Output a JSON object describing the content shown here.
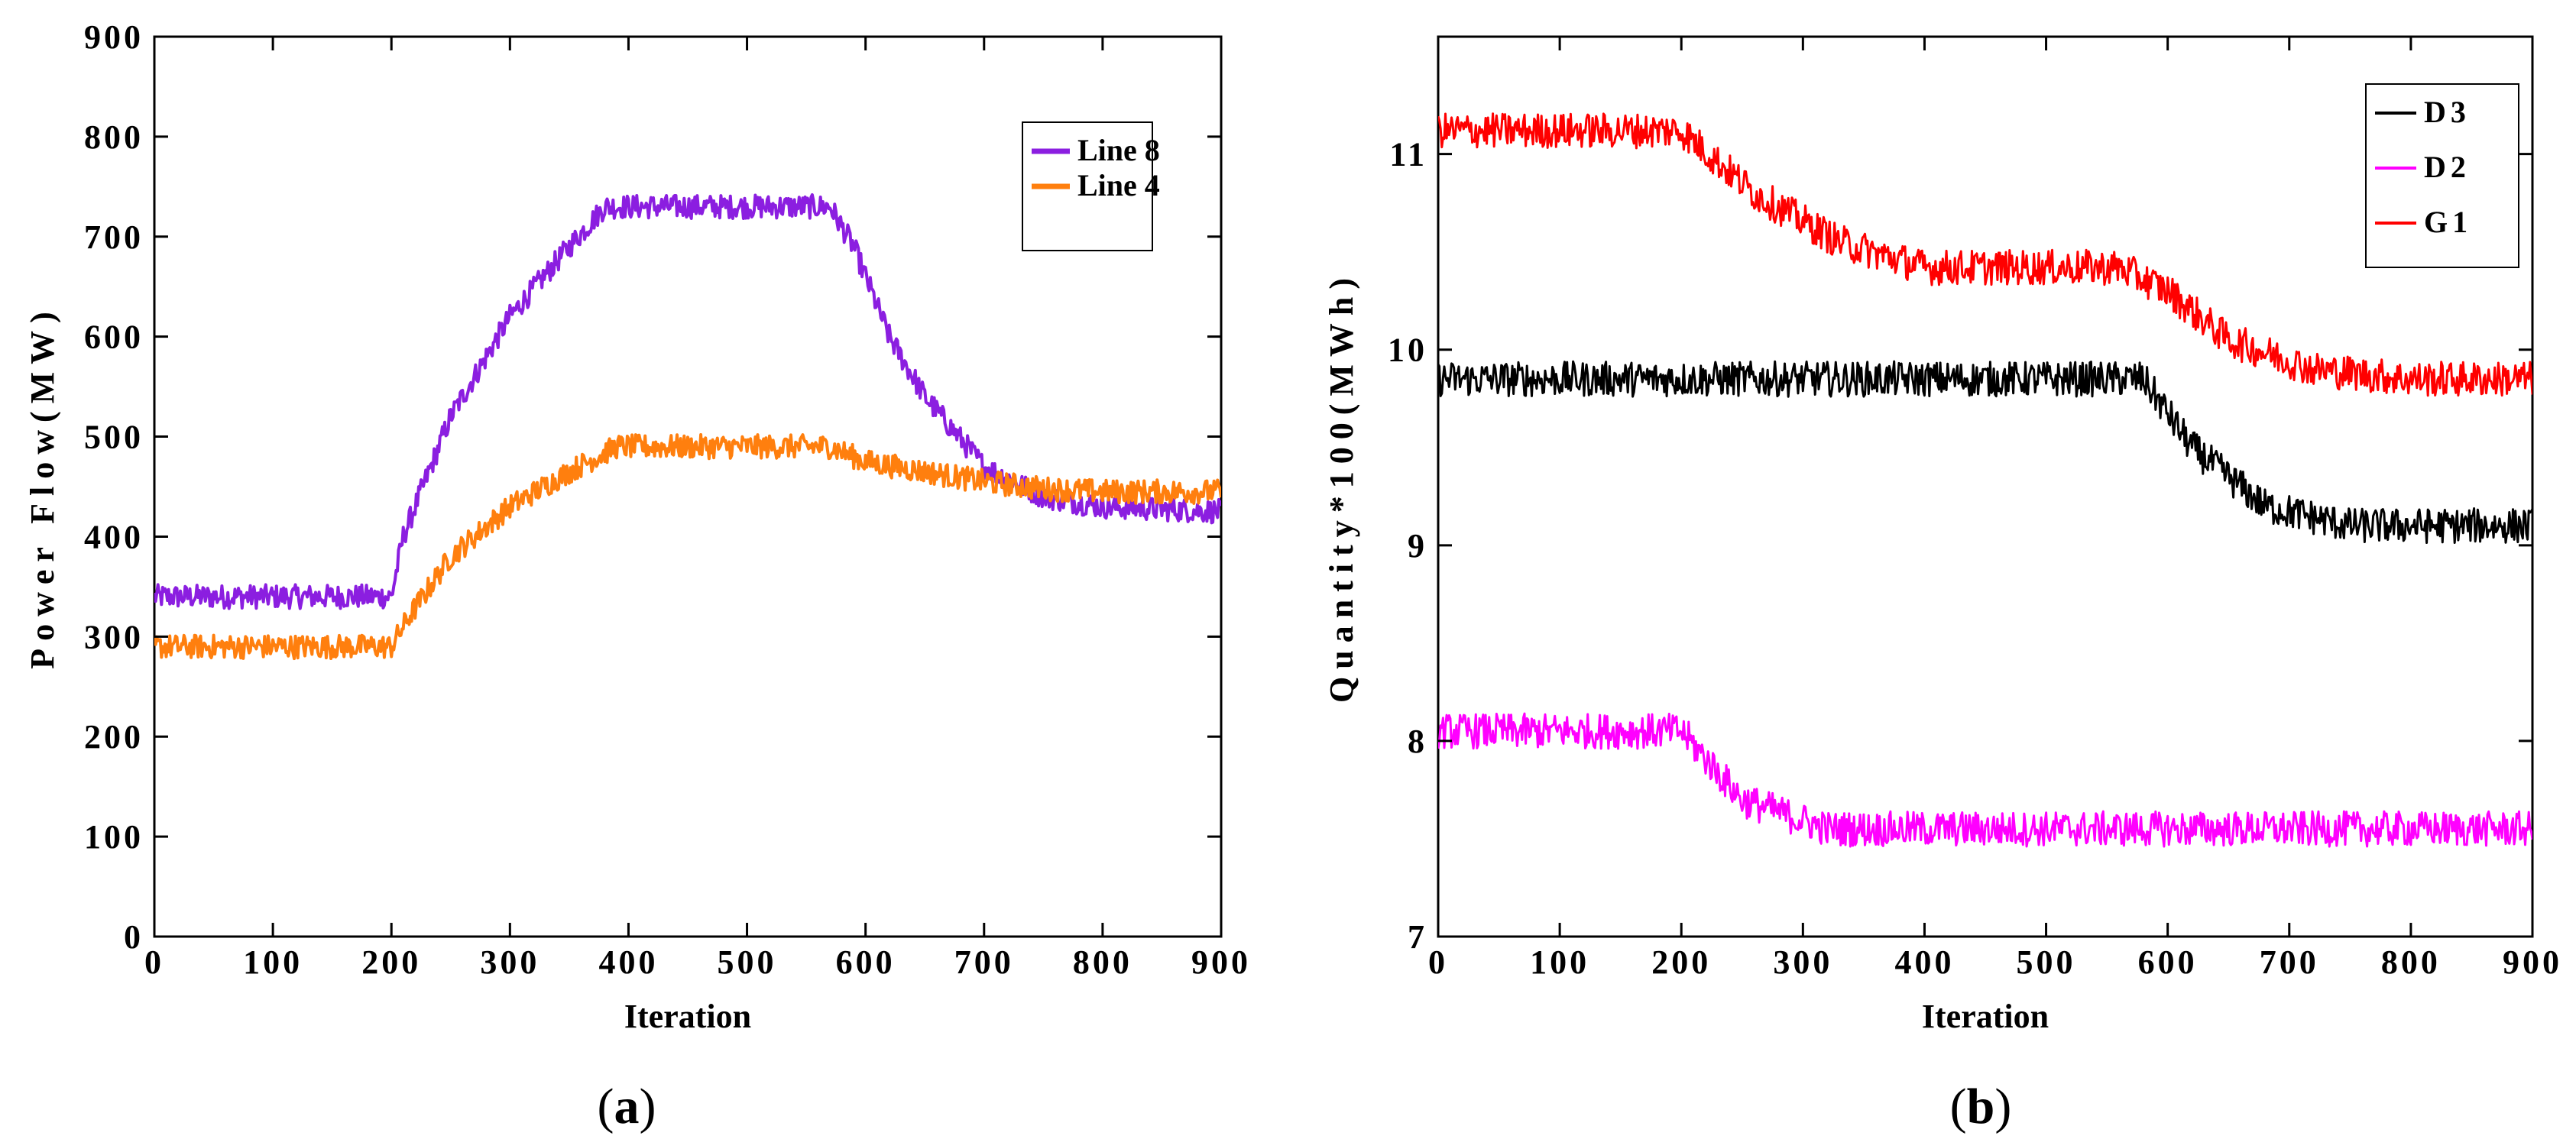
{
  "chart_data": [
    {
      "type": "line",
      "panel_label": "a",
      "title": "",
      "xlabel": "Iteration",
      "ylabel": "Power Flow(MW)",
      "xlim": [
        0,
        900
      ],
      "ylim": [
        0,
        900
      ],
      "xticks": [
        0,
        100,
        200,
        300,
        400,
        500,
        600,
        700,
        800,
        900
      ],
      "yticks": [
        0,
        100,
        200,
        300,
        400,
        500,
        600,
        700,
        800,
        900
      ],
      "legend_position": "top-right",
      "noise_amplitude": 12,
      "series": [
        {
          "name": "Line 8",
          "color": "#8B1EE0",
          "x": [
            0,
            200,
            210,
            250,
            300,
            350,
            380,
            570,
            590,
            620,
            650,
            700,
            750,
            800,
            900
          ],
          "y": [
            340,
            340,
            400,
            520,
            620,
            690,
            730,
            730,
            690,
            600,
            540,
            470,
            440,
            430,
            425
          ]
        },
        {
          "name": "Line 4",
          "color": "#FF7F0E",
          "x": [
            0,
            200,
            215,
            250,
            300,
            350,
            390,
            570,
            600,
            650,
            700,
            750,
            800,
            900
          ],
          "y": [
            290,
            290,
            320,
            380,
            430,
            465,
            490,
            490,
            475,
            465,
            455,
            448,
            445,
            445
          ]
        }
      ]
    },
    {
      "type": "line",
      "panel_label": "b",
      "title": "",
      "xlabel": "Iteration",
      "ylabel": "Quantity*100(MWh)",
      "xlim": [
        0,
        900
      ],
      "ylim": [
        7,
        11.6
      ],
      "xticks": [
        0,
        100,
        200,
        300,
        400,
        500,
        600,
        700,
        800,
        900
      ],
      "yticks": [
        7,
        8,
        9,
        10,
        11
      ],
      "legend_position": "top-right",
      "noise_amplitude": 0.09,
      "series": [
        {
          "name": "D3",
          "color": "#000000",
          "x": [
            0,
            580,
            620,
            680,
            750,
            900
          ],
          "y": [
            9.85,
            9.85,
            9.5,
            9.2,
            9.1,
            9.1
          ]
        },
        {
          "name": "D2",
          "color": "#FF00FF",
          "x": [
            0,
            200,
            250,
            320,
            900
          ],
          "y": [
            8.05,
            8.05,
            7.7,
            7.55,
            7.55
          ]
        },
        {
          "name": "G1",
          "color": "#FF0000",
          "x": [
            0,
            200,
            260,
            330,
            400,
            560,
            600,
            650,
            720,
            800,
            900
          ],
          "y": [
            11.12,
            11.12,
            10.8,
            10.55,
            10.42,
            10.42,
            10.3,
            10.05,
            9.9,
            9.85,
            9.85
          ]
        }
      ]
    }
  ]
}
